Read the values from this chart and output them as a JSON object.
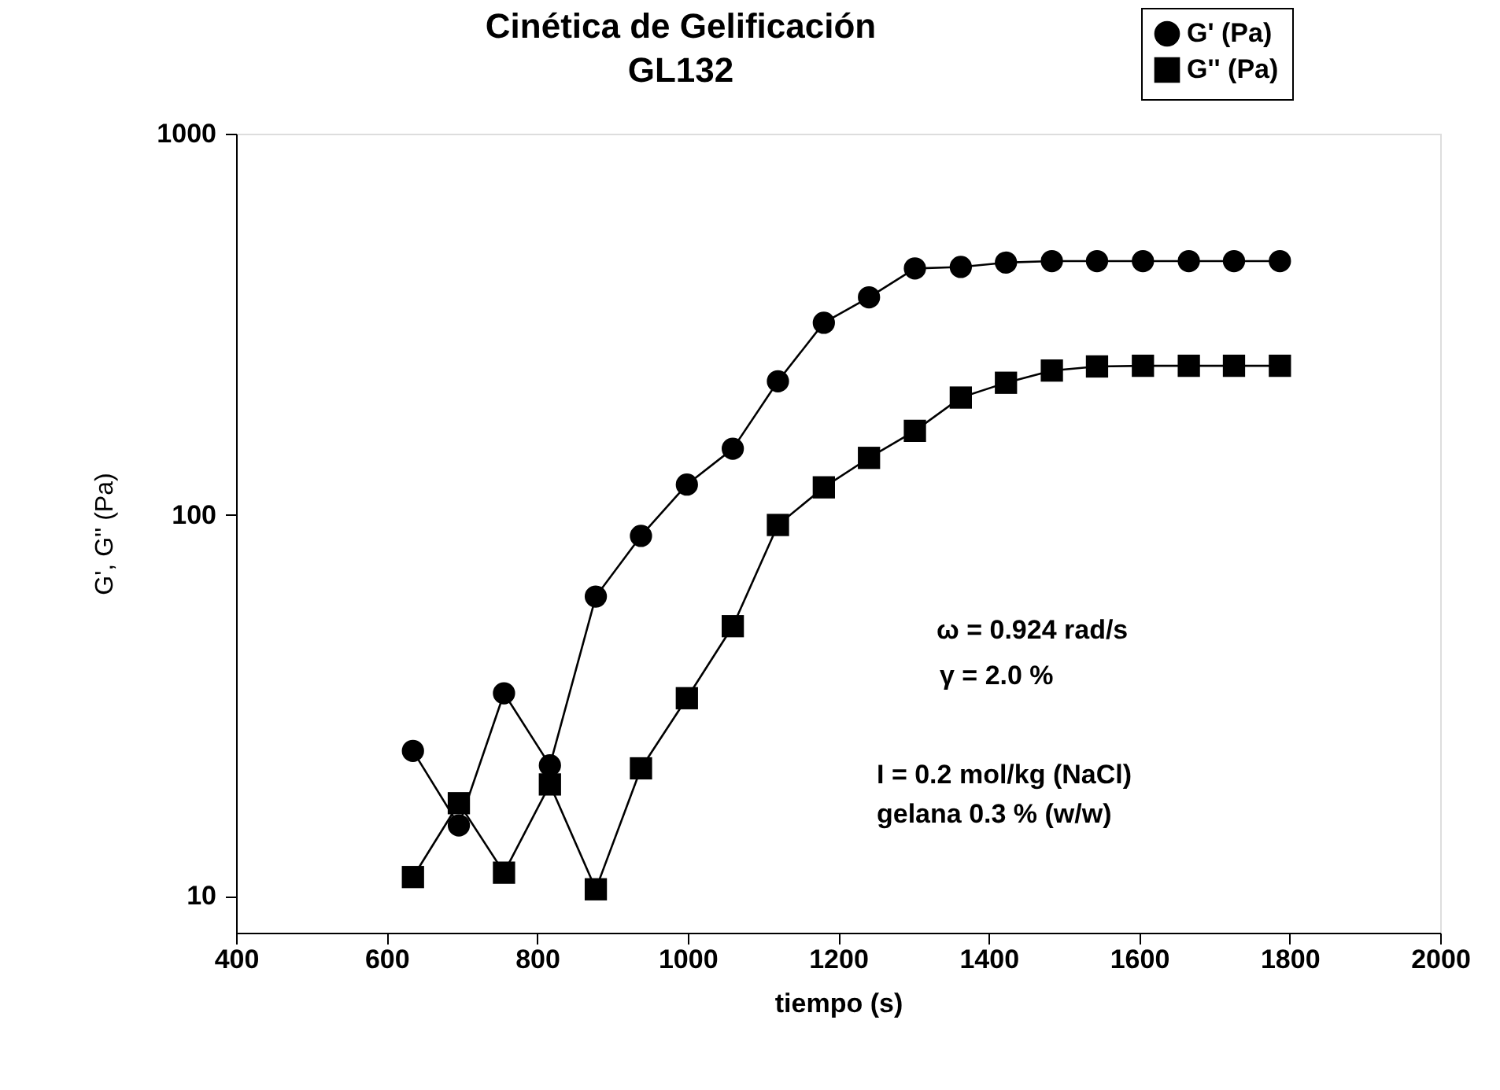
{
  "chart_data": {
    "type": "line",
    "title": "Cinética de Gelificación",
    "subtitle": "GL132",
    "xlabel": "tiempo (s)",
    "ylabel": "G', G'' (Pa)",
    "x": [
      635,
      696,
      756,
      817,
      878,
      938,
      999,
      1060,
      1120,
      1181,
      1241,
      1302,
      1363,
      1423,
      1484,
      1544,
      1605,
      1666,
      1726,
      1787
    ],
    "series": [
      {
        "name": "G' (Pa)",
        "color": "#000000",
        "marker": "circle",
        "values": [
          24,
          15.3,
          34,
          22,
          61,
          88,
          120,
          149,
          224,
          319,
          372,
          443,
          447,
          459,
          463,
          463,
          463,
          463,
          463,
          463
        ]
      },
      {
        "name": "G'' (Pa)",
        "color": "#000000",
        "marker": "square",
        "values": [
          11.2,
          17.5,
          11.5,
          19.6,
          10.4,
          21.6,
          33,
          51,
          94,
          118,
          141,
          166,
          203,
          222,
          239,
          245,
          246,
          246,
          246,
          246
        ]
      }
    ],
    "xlim": [
      400,
      2000
    ],
    "xticks": [
      400,
      600,
      800,
      1000,
      1200,
      1400,
      1600,
      1800,
      2000
    ],
    "ylim": [
      8,
      1000
    ],
    "yticks": [
      10,
      100,
      1000
    ],
    "log": "y",
    "grid": false,
    "legend": "top right",
    "line_style": "solid",
    "annotations": [
      "ω  =  0.924 rad/s",
      "γ  =  2.0 %",
      "I = 0.2   mol/kg (NaCl)",
      "gelana 0.3 % (w/w)"
    ]
  }
}
